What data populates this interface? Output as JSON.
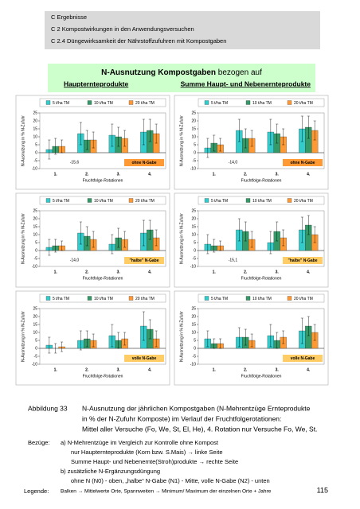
{
  "header": {
    "lines": [
      "C Ergebnisse",
      "C 2 Kompostwirkungen in den Anwendungsversuchen",
      "C 2.4 Düngewirksamkeit der Nährstoffzufuhren mit Kompostgaben"
    ]
  },
  "figure_title": {
    "main": "N-Ausnutzung Kompostgaben",
    "rest": "bezogen auf",
    "left": "Haupternteprodukte",
    "right": "Summe Haupt- und Nebenernteprodukte"
  },
  "chart_data": [
    {
      "type": "bar",
      "categories": [
        "1.",
        "2.",
        "3.",
        "4."
      ],
      "ylim": [
        -10,
        25
      ],
      "yticks": [
        -10,
        -5,
        0,
        5,
        10,
        15,
        20,
        25
      ],
      "ylabel": "N-Ausnutzung in % N-Zufuhr",
      "xlabel": "Fruchtfolge-Rotationen",
      "annotation": "ohne N-Gabe",
      "annotation_color": "#ff9933",
      "low_label": "-15,6",
      "series": [
        {
          "name": "5 t/ha TM",
          "color": "#33cccc",
          "values": [
            2,
            12,
            11,
            13
          ],
          "errors": [
            6,
            7,
            7,
            8
          ]
        },
        {
          "name": "10 t/ha TM",
          "color": "#339966",
          "values": [
            4,
            8,
            10,
            14
          ],
          "errors": [
            5,
            6,
            6,
            7
          ]
        },
        {
          "name": "20 t/ha TM",
          "color": "#ff9933",
          "values": [
            4,
            8,
            9,
            12
          ],
          "errors": [
            4,
            5,
            5,
            6
          ]
        }
      ]
    },
    {
      "type": "bar",
      "categories": [
        "1.",
        "2.",
        "3.",
        "4."
      ],
      "ylim": [
        -10,
        25
      ],
      "yticks": [
        -10,
        -5,
        0,
        5,
        10,
        15,
        20,
        25
      ],
      "ylabel": "N-Ausnutzung in % N-Zufuhr",
      "xlabel": "Fruchtfolge-Rotationen",
      "annotation": "ohne N-Gabe",
      "annotation_color": "#ff9933",
      "low_label": "-14,0",
      "series": [
        {
          "name": "5 t/ha TM",
          "color": "#33cccc",
          "values": [
            3,
            14,
            13,
            15
          ],
          "errors": [
            6,
            7,
            8,
            8
          ]
        },
        {
          "name": "10 t/ha TM",
          "color": "#339966",
          "values": [
            6,
            9,
            12,
            16
          ],
          "errors": [
            5,
            6,
            6,
            7
          ]
        },
        {
          "name": "20 t/ha TM",
          "color": "#ff9933",
          "values": [
            5,
            9,
            10,
            14
          ],
          "errors": [
            4,
            5,
            5,
            6
          ]
        }
      ]
    },
    {
      "type": "bar",
      "categories": [
        "1.",
        "2.",
        "3.",
        "4."
      ],
      "ylim": [
        -10,
        25
      ],
      "yticks": [
        -10,
        -5,
        0,
        5,
        10,
        15,
        20,
        25
      ],
      "ylabel": "N-Ausnutzung in % N-Zufuhr",
      "xlabel": "Fruchtfolge-Rotationen",
      "annotation": "\"halbe\" N-Gabe",
      "annotation_color": "#ffcc66",
      "low_label": "-14,0",
      "series": [
        {
          "name": "5 t/ha TM",
          "color": "#33cccc",
          "values": [
            2,
            11,
            4,
            11
          ],
          "errors": [
            5,
            7,
            6,
            8
          ]
        },
        {
          "name": "10 t/ha TM",
          "color": "#339966",
          "values": [
            3,
            9,
            8,
            13
          ],
          "errors": [
            4,
            6,
            6,
            6
          ]
        },
        {
          "name": "20 t/ha TM",
          "color": "#ff9933",
          "values": [
            3,
            7,
            7,
            8
          ],
          "errors": [
            3,
            5,
            5,
            5
          ]
        }
      ]
    },
    {
      "type": "bar",
      "categories": [
        "1.",
        "2.",
        "3.",
        "4."
      ],
      "ylim": [
        -10,
        25
      ],
      "yticks": [
        -10,
        -5,
        0,
        5,
        10,
        15,
        20,
        25
      ],
      "ylabel": "N-Ausnutzung in % N-Zufuhr",
      "xlabel": "Fruchtfolge-Rotationen",
      "annotation": "\"halbe\" N-Gabe",
      "annotation_color": "#ffcc66",
      "low_label": "-15,1",
      "series": [
        {
          "name": "5 t/ha TM",
          "color": "#33cccc",
          "values": [
            4,
            13,
            5,
            13
          ],
          "errors": [
            6,
            7,
            7,
            8
          ]
        },
        {
          "name": "10 t/ha TM",
          "color": "#339966",
          "values": [
            3,
            12,
            12,
            16
          ],
          "errors": [
            4,
            6,
            6,
            6
          ]
        },
        {
          "name": "20 t/ha TM",
          "color": "#ff9933",
          "values": [
            3,
            7,
            8,
            10
          ],
          "errors": [
            3,
            5,
            5,
            5
          ]
        }
      ]
    },
    {
      "type": "bar",
      "categories": [
        "1.",
        "2.",
        "3.",
        "4."
      ],
      "ylim": [
        -10,
        25
      ],
      "yticks": [
        -10,
        -5,
        0,
        5,
        10,
        15,
        20,
        25
      ],
      "ylabel": "N-Ausnutzung in % N-Zufuhr",
      "xlabel": "Fruchtfolge-Rotationen",
      "annotation": "volle N-Gabe",
      "annotation_color": "#ffcc66",
      "series": [
        {
          "name": "5 t/ha TM",
          "color": "#33cccc",
          "values": [
            2,
            5,
            8,
            14
          ],
          "errors": [
            5,
            6,
            7,
            9
          ]
        },
        {
          "name": "10 t/ha TM",
          "color": "#339966",
          "values": [
            0,
            6,
            5,
            12
          ],
          "errors": [
            3,
            5,
            5,
            6
          ]
        },
        {
          "name": "20 t/ha TM",
          "color": "#ff9933",
          "values": [
            1,
            5,
            6,
            6
          ],
          "errors": [
            3,
            4,
            4,
            5
          ]
        }
      ]
    },
    {
      "type": "bar",
      "categories": [
        "1.",
        "2.",
        "3.",
        "4."
      ],
      "ylim": [
        -10,
        25
      ],
      "yticks": [
        -10,
        -5,
        0,
        5,
        10,
        15,
        20,
        25
      ],
      "ylabel": "N-Ausnutzung in % N-Zufuhr",
      "xlabel": "Fruchtfolge-Rotationen",
      "annotation": "volle N-Gabe",
      "annotation_color": "#ffcc66",
      "series": [
        {
          "name": "5 t/ha TM",
          "color": "#33cccc",
          "values": [
            6,
            7,
            8,
            11
          ],
          "errors": [
            5,
            6,
            7,
            8
          ]
        },
        {
          "name": "10 t/ha TM",
          "color": "#339966",
          "values": [
            3,
            7,
            5,
            14
          ],
          "errors": [
            3,
            5,
            5,
            6
          ]
        },
        {
          "name": "20 t/ha TM",
          "color": "#ff9933",
          "values": [
            3,
            5,
            7,
            10
          ],
          "errors": [
            3,
            4,
            4,
            5
          ]
        }
      ]
    }
  ],
  "caption": {
    "label": "Abbildung 33",
    "lines": [
      "N-Ausnutzung der jährlichen Kompostgaben (N-Mehrentzüge Ernteprodukte",
      "in % der N-Zufuhr Komposte) im Verlauf der Fruchtfolgerotationen:",
      "Mittel aller Versuche (Fo, We, St, El, He), 4. Rotation nur Versuche Fo, We, St."
    ]
  },
  "bezuege": {
    "label": "Bezüge:",
    "lines": [
      "a) N-Mehrentzüge im Vergleich zur Kontrolle ohne Kompost",
      "nur Haupternteprodukte (Korn bzw. S.Mais)  → linke Seite",
      "Summe Haupt- und Nebenernte(Stroh)produkte → rechte Seite",
      "b) zusätzliche N-Ergänzungsdüngung",
      "ohne N (N0) - oben, „halbe“ N-Gabe (N1) - Mitte, volle N-Gabe (N2) - unten"
    ]
  },
  "legende": {
    "label": "Legende:",
    "text": "Balken → Mittelwerte Orte, Spannweiten → Minimum/ Maximum der einzelnen Orte + Jahre"
  },
  "page_number": "115"
}
